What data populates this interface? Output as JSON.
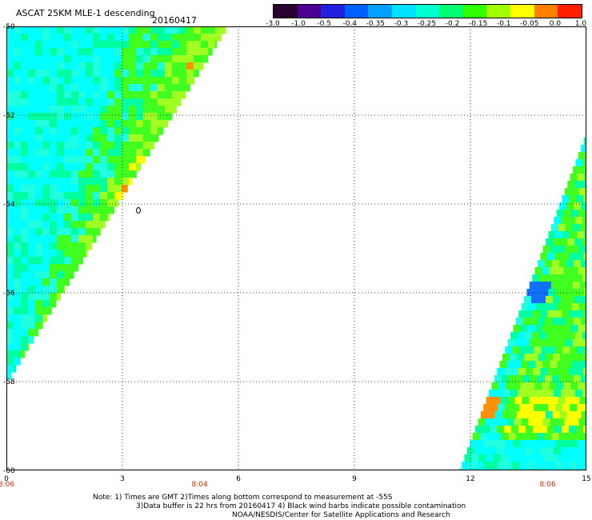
{
  "header": {
    "title": "ASCAT 25KM MLE-1 descending",
    "date": "20160417"
  },
  "colorbar": {
    "labels": [
      "-3.0",
      "-1.0",
      "-0.5",
      "-0.4",
      "-0.35",
      "-0.3",
      "-0.25",
      "-0.2",
      "-0.15",
      "-0.1",
      "-0.05",
      "0.0",
      "1.0"
    ],
    "colors": [
      "#2a0030",
      "#4b0090",
      "#2020e0",
      "#0060ff",
      "#00a0ff",
      "#00e0ff",
      "#00ffd0",
      "#00ff70",
      "#30ff00",
      "#a0ff00",
      "#ffff00",
      "#ff8000",
      "#ff2000"
    ]
  },
  "axes": {
    "y_labels": [
      "-50",
      "-52",
      "-54",
      "-56",
      "-58",
      "-60"
    ],
    "y_values": [
      -50,
      -52,
      -54,
      -56,
      -58,
      -60
    ],
    "x_labels": [
      "0",
      "3",
      "6",
      "9",
      "12",
      "15"
    ],
    "x_values": [
      0,
      3,
      6,
      9,
      12,
      15
    ],
    "x_range": [
      0,
      15
    ],
    "y_range": [
      -50,
      -60
    ],
    "grid": true
  },
  "time_labels": [
    {
      "text": "8:06",
      "x": 0
    },
    {
      "text": "8:04",
      "x": 5
    },
    {
      "text": "8:06",
      "x": 14
    }
  ],
  "map_colors": {
    "cyan": "#00ffff",
    "aqua": "#20ffe0",
    "mint": "#00ffa0",
    "green": "#40ff20",
    "lime": "#a0ff20",
    "yellow": "#ffff00",
    "orange": "#ff9000",
    "blue": "#1070ff",
    "time_label": "#c03000"
  },
  "notes": {
    "line1": "Note: 1) Times are GMT 2)Times along bottom correspond to measurement at -55S",
    "line2": "3)Data buffer is 22 hrs from 20160417 4) Black wind barbs indicate possible contamination",
    "line3": "NOAA/NESDIS/Center for Satellite Applications and Research"
  }
}
